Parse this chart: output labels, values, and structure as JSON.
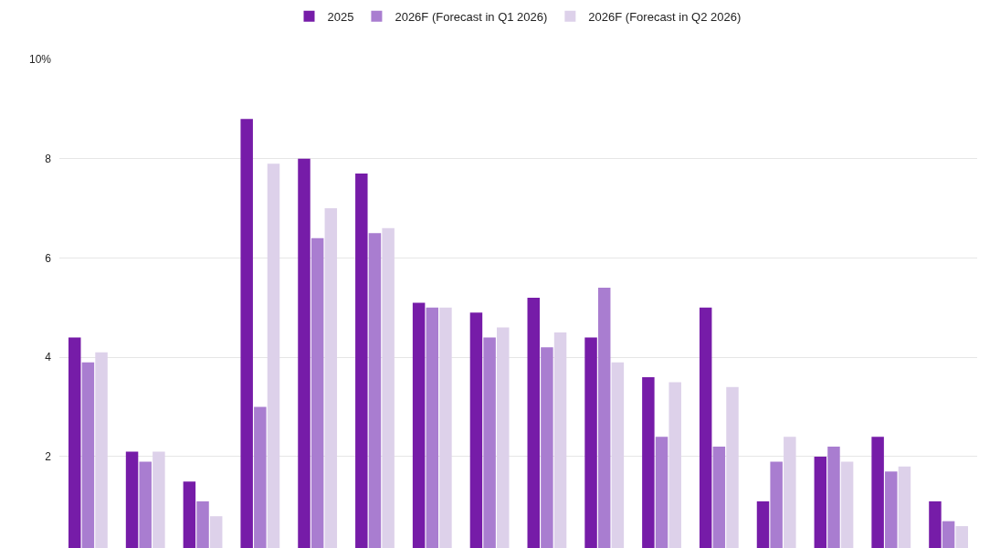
{
  "chart_data": {
    "type": "bar",
    "categories": [
      null,
      null,
      null,
      null,
      null,
      null,
      null,
      null,
      null,
      null,
      null,
      null,
      null,
      null,
      null,
      null
    ],
    "series": [
      {
        "name": "2025",
        "color": "#761ca8",
        "values": [
          4.4,
          2.1,
          1.5,
          8.8,
          8.0,
          7.7,
          5.1,
          4.9,
          5.2,
          4.4,
          3.6,
          5.0,
          1.1,
          2.0,
          2.4,
          1.1
        ]
      },
      {
        "name": "2026F (Forecast in Q1 2026)",
        "color": "#a97dd0",
        "values": [
          3.9,
          1.9,
          1.1,
          3.0,
          6.4,
          6.5,
          5.0,
          4.4,
          4.2,
          5.4,
          2.4,
          2.2,
          1.9,
          2.2,
          1.7,
          0.7
        ]
      },
      {
        "name": "2026F (Forecast in Q2 2026)",
        "color": "#ddd1ea",
        "values": [
          4.1,
          2.1,
          0.8,
          7.9,
          7.0,
          6.6,
          5.0,
          4.6,
          4.5,
          3.9,
          3.5,
          3.4,
          2.4,
          1.9,
          1.8,
          0.6
        ]
      }
    ],
    "ylim": [
      0.16,
      10
    ],
    "yticks": [
      {
        "value": 2,
        "label": "2"
      },
      {
        "value": 4,
        "label": "4"
      },
      {
        "value": 6,
        "label": "6"
      },
      {
        "value": 8,
        "label": "8"
      },
      {
        "value": 10,
        "label": "10%"
      }
    ],
    "grid": "y",
    "legend": "top",
    "tick_labels": "y"
  }
}
